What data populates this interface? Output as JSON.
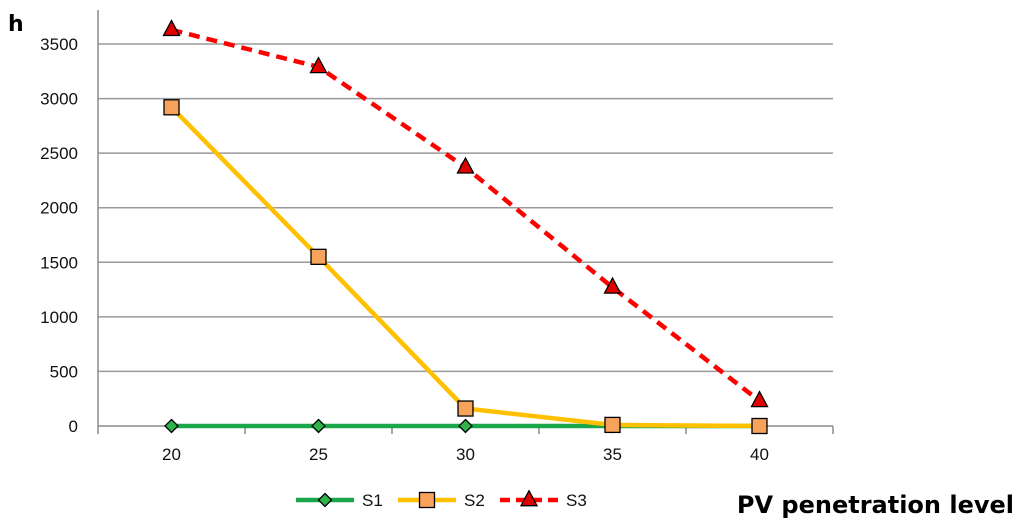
{
  "chart_data": {
    "type": "line",
    "ylabel": "h",
    "xlabel": "PV penetration level",
    "categories": [
      "20",
      "25",
      "30",
      "35",
      "40"
    ],
    "ylim": [
      0,
      3500
    ],
    "yticks": [
      "0",
      "500",
      "1000",
      "1500",
      "2000",
      "2500",
      "3000",
      "3500"
    ],
    "grid": true,
    "legend_position": "bottom",
    "series": [
      {
        "name": "S1",
        "values": [
          0,
          0,
          0,
          0,
          0
        ],
        "color": "#1aa64a",
        "marker": "diamond",
        "marker_fill": "#2fb34a",
        "line_style": "solid"
      },
      {
        "name": "S2",
        "values": [
          2920,
          1550,
          160,
          10,
          0
        ],
        "color": "#ffc000",
        "marker": "square",
        "marker_fill": "#f7a35c",
        "line_style": "solid"
      },
      {
        "name": "S3",
        "values": [
          3630,
          3290,
          2370,
          1270,
          230
        ],
        "color": "#ff0000",
        "marker": "triangle",
        "marker_fill": "#e00000",
        "line_style": "dashed"
      }
    ]
  }
}
